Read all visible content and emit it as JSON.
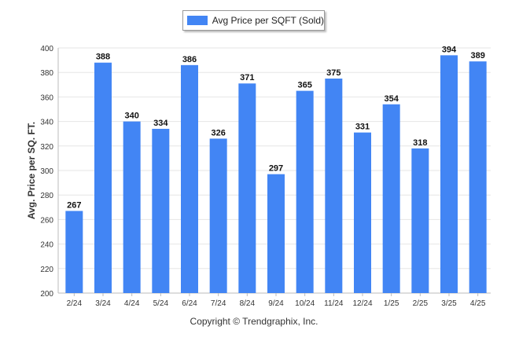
{
  "chart_data": {
    "type": "bar",
    "categories": [
      "2/24",
      "3/24",
      "4/24",
      "5/24",
      "6/24",
      "7/24",
      "8/24",
      "9/24",
      "10/24",
      "11/24",
      "12/24",
      "1/25",
      "2/25",
      "3/25",
      "4/25"
    ],
    "series": [
      {
        "name": "Avg Price per SQFT (Sold)",
        "values": [
          267,
          388,
          340,
          334,
          386,
          326,
          371,
          297,
          365,
          375,
          331,
          354,
          318,
          394,
          389
        ]
      }
    ],
    "ylabel": "Avg. Price per SQ. FT.",
    "xlabel": "",
    "ylim": [
      200,
      400
    ],
    "yticks": [
      200,
      220,
      240,
      260,
      280,
      300,
      320,
      340,
      360,
      380,
      400
    ],
    "grid": true,
    "legend_position": "top-center",
    "bar_color": "#4285f4"
  },
  "footer": {
    "copyright": "Copyright © Trendgraphix, Inc."
  }
}
